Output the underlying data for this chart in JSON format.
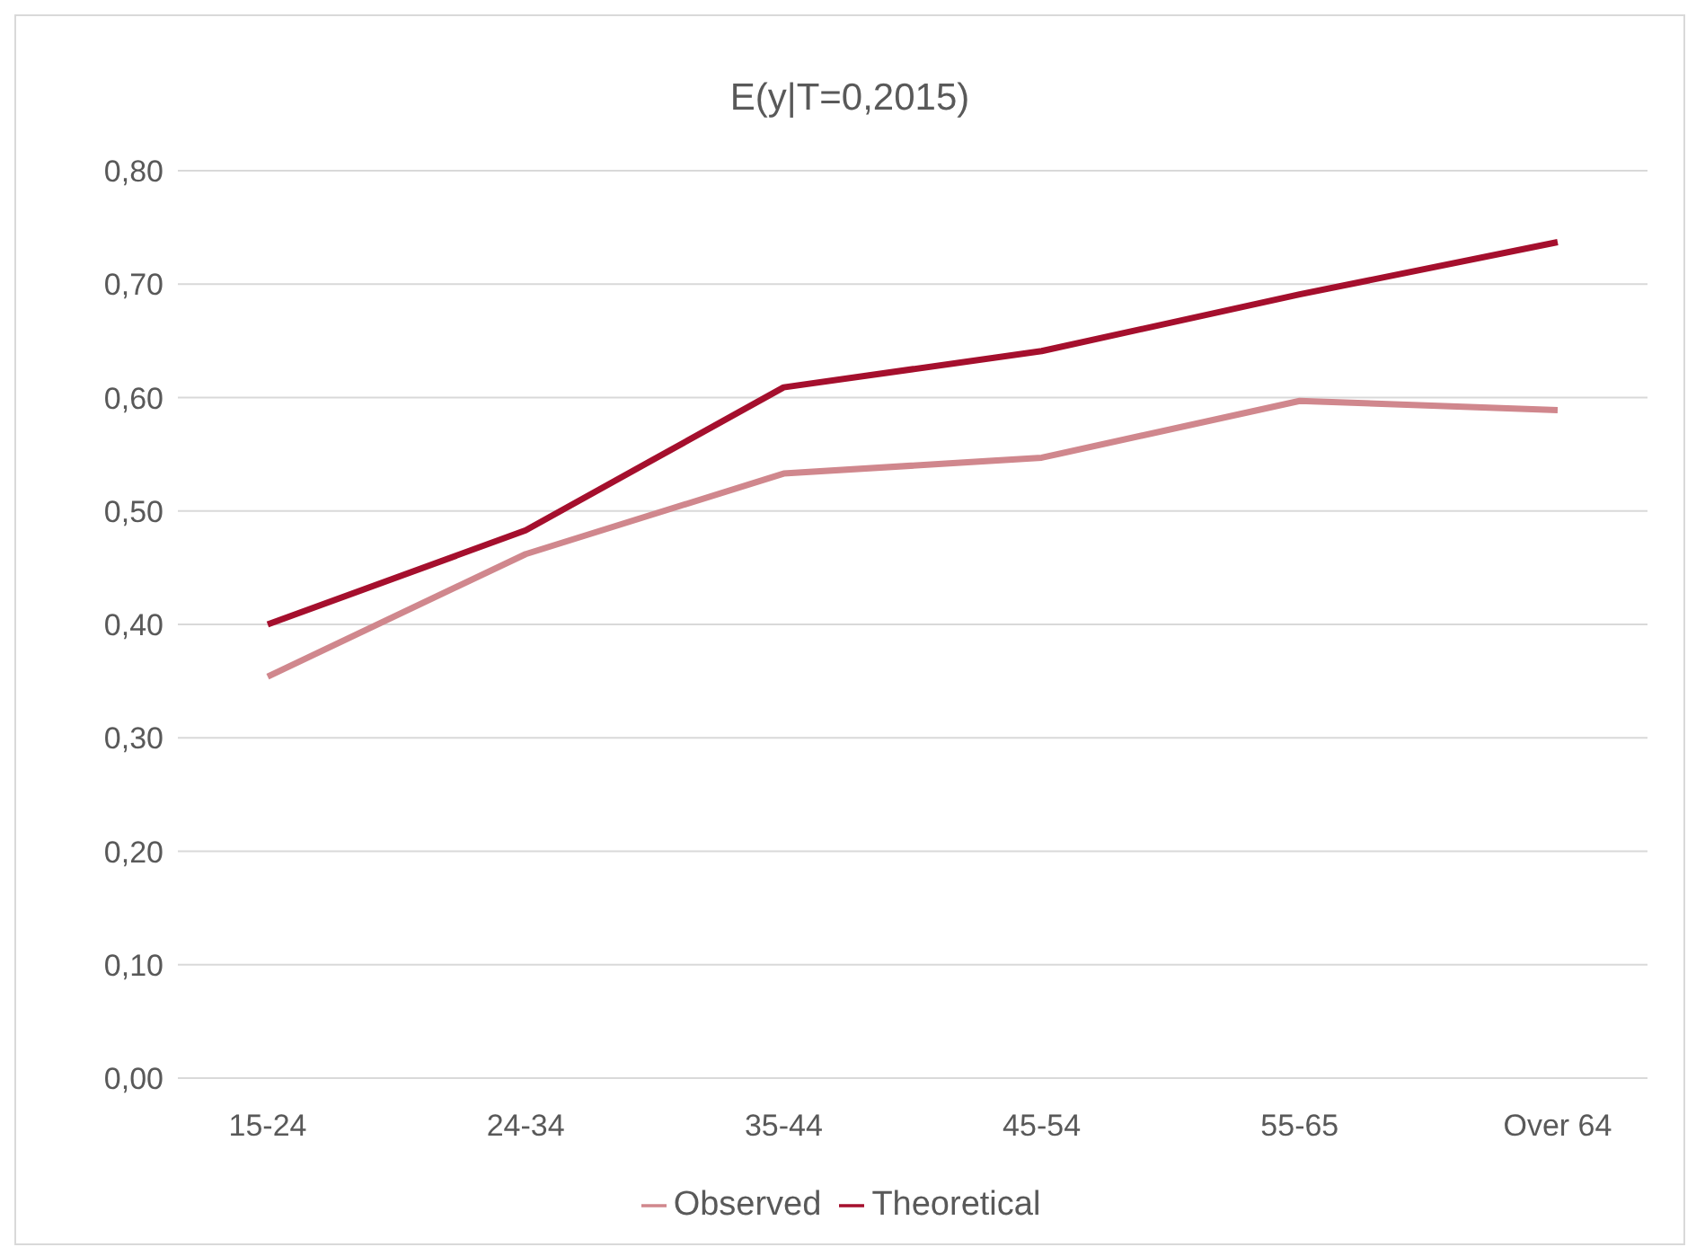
{
  "chart_data": {
    "type": "line",
    "title": "E(y|T=0,2015)",
    "categories": [
      "15-24",
      "24-34",
      "35-44",
      "45-54",
      "55-65",
      "Over 64"
    ],
    "series": [
      {
        "name": "Observed",
        "color": "#d0878d",
        "values": [
          0.354,
          0.462,
          0.533,
          0.547,
          0.597,
          0.589
        ]
      },
      {
        "name": "Theoretical",
        "color": "#a50f2d",
        "values": [
          0.4,
          0.483,
          0.609,
          0.641,
          0.691,
          0.737
        ]
      }
    ],
    "ylim": [
      0,
      0.8
    ],
    "yticks": [
      {
        "value": 0,
        "label": "0,00"
      },
      {
        "value": 0.1,
        "label": "0,10"
      },
      {
        "value": 0.2,
        "label": "0,20"
      },
      {
        "value": 0.3,
        "label": "0,30"
      },
      {
        "value": 0.4,
        "label": "0,40"
      },
      {
        "value": 0.5,
        "label": "0,50"
      },
      {
        "value": 0.6,
        "label": "0,60"
      },
      {
        "value": 0.7,
        "label": "0,70"
      },
      {
        "value": 0.8,
        "label": "0,80"
      }
    ],
    "grid": "y",
    "legend": "bottom",
    "marker": "none"
  }
}
